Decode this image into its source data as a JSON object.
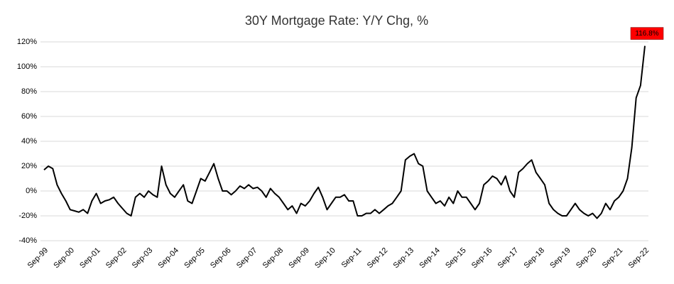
{
  "chart_data": {
    "type": "line",
    "title": "30Y Mortgage Rate: Y/Y Chg, %",
    "categories": [
      "Sep-99",
      null,
      null,
      null,
      null,
      null,
      "Sep-00",
      null,
      null,
      null,
      null,
      null,
      "Sep-01",
      null,
      null,
      null,
      null,
      null,
      "Sep-02",
      null,
      null,
      null,
      null,
      null,
      "Sep-03",
      null,
      null,
      null,
      null,
      null,
      "Sep-04",
      null,
      null,
      null,
      null,
      null,
      "Sep-05",
      null,
      null,
      null,
      null,
      null,
      "Sep-06",
      null,
      null,
      null,
      null,
      null,
      "Sep-07",
      null,
      null,
      null,
      null,
      null,
      "Sep-08",
      null,
      null,
      null,
      null,
      null,
      "Sep-09",
      null,
      null,
      null,
      null,
      null,
      "Sep-10",
      null,
      null,
      null,
      null,
      null,
      "Sep-11",
      null,
      null,
      null,
      null,
      null,
      "Sep-12",
      null,
      null,
      null,
      null,
      null,
      "Sep-13",
      null,
      null,
      null,
      null,
      null,
      "Sep-14",
      null,
      null,
      null,
      null,
      null,
      "Sep-15",
      null,
      null,
      null,
      null,
      null,
      "Sep-16",
      null,
      null,
      null,
      null,
      null,
      "Sep-17",
      null,
      null,
      null,
      null,
      null,
      "Sep-18",
      null,
      null,
      null,
      null,
      null,
      "Sep-19",
      null,
      null,
      null,
      null,
      null,
      "Sep-20",
      null,
      null,
      null,
      null,
      null,
      "Sep-21",
      null,
      null,
      null,
      null,
      null,
      "Sep-22"
    ],
    "series": [
      {
        "name": "30Y Mortgage Rate Y/Y Chg",
        "color": "#000000",
        "values": [
          17,
          20,
          18,
          5,
          -2,
          -8,
          -15,
          -16,
          -17,
          -15,
          -18,
          -8,
          -2,
          -10,
          -8,
          -7,
          -5,
          -10,
          -14,
          -18,
          -20,
          -5,
          -2,
          -5,
          0,
          -3,
          -5,
          20,
          5,
          -2,
          -5,
          0,
          5,
          -8,
          -10,
          0,
          10,
          8,
          15,
          22,
          10,
          0,
          0,
          -3,
          0,
          4,
          2,
          5,
          2,
          3,
          0,
          -5,
          2,
          -2,
          -5,
          -10,
          -15,
          -12,
          -18,
          -10,
          -12,
          -8,
          -2,
          3,
          -5,
          -15,
          -10,
          -5,
          -5,
          -3,
          -8,
          -8,
          -20,
          -20,
          -18,
          -18,
          -15,
          -18,
          -15,
          -12,
          -10,
          -5,
          0,
          25,
          28,
          30,
          22,
          20,
          0,
          -5,
          -10,
          -8,
          -12,
          -5,
          -10,
          0,
          -5,
          -5,
          -10,
          -15,
          -10,
          5,
          8,
          12,
          10,
          5,
          12,
          0,
          -5,
          15,
          18,
          22,
          25,
          15,
          10,
          5,
          -10,
          -15,
          -18,
          -20,
          -20,
          -15,
          -10,
          -15,
          -18,
          -20,
          -18,
          -22,
          -18,
          -10,
          -15,
          -8,
          -5,
          0,
          10,
          35,
          75,
          85,
          116.8
        ]
      }
    ],
    "annotation": "116.8%",
    "annotation_color": "#ff0000",
    "ylim": [
      -40,
      120
    ],
    "yticks": [
      {
        "value": -40,
        "label": "-40%",
        "color": "#ff0000"
      },
      {
        "value": -20,
        "label": "-20%"
      },
      {
        "value": 0,
        "label": "0%"
      },
      {
        "value": 20,
        "label": "20%"
      },
      {
        "value": 40,
        "label": "40%"
      },
      {
        "value": 60,
        "label": "60%"
      },
      {
        "value": 80,
        "label": "80%"
      },
      {
        "value": 100,
        "label": "100%"
      },
      {
        "value": 120,
        "label": "120%"
      }
    ],
    "grid": true
  }
}
